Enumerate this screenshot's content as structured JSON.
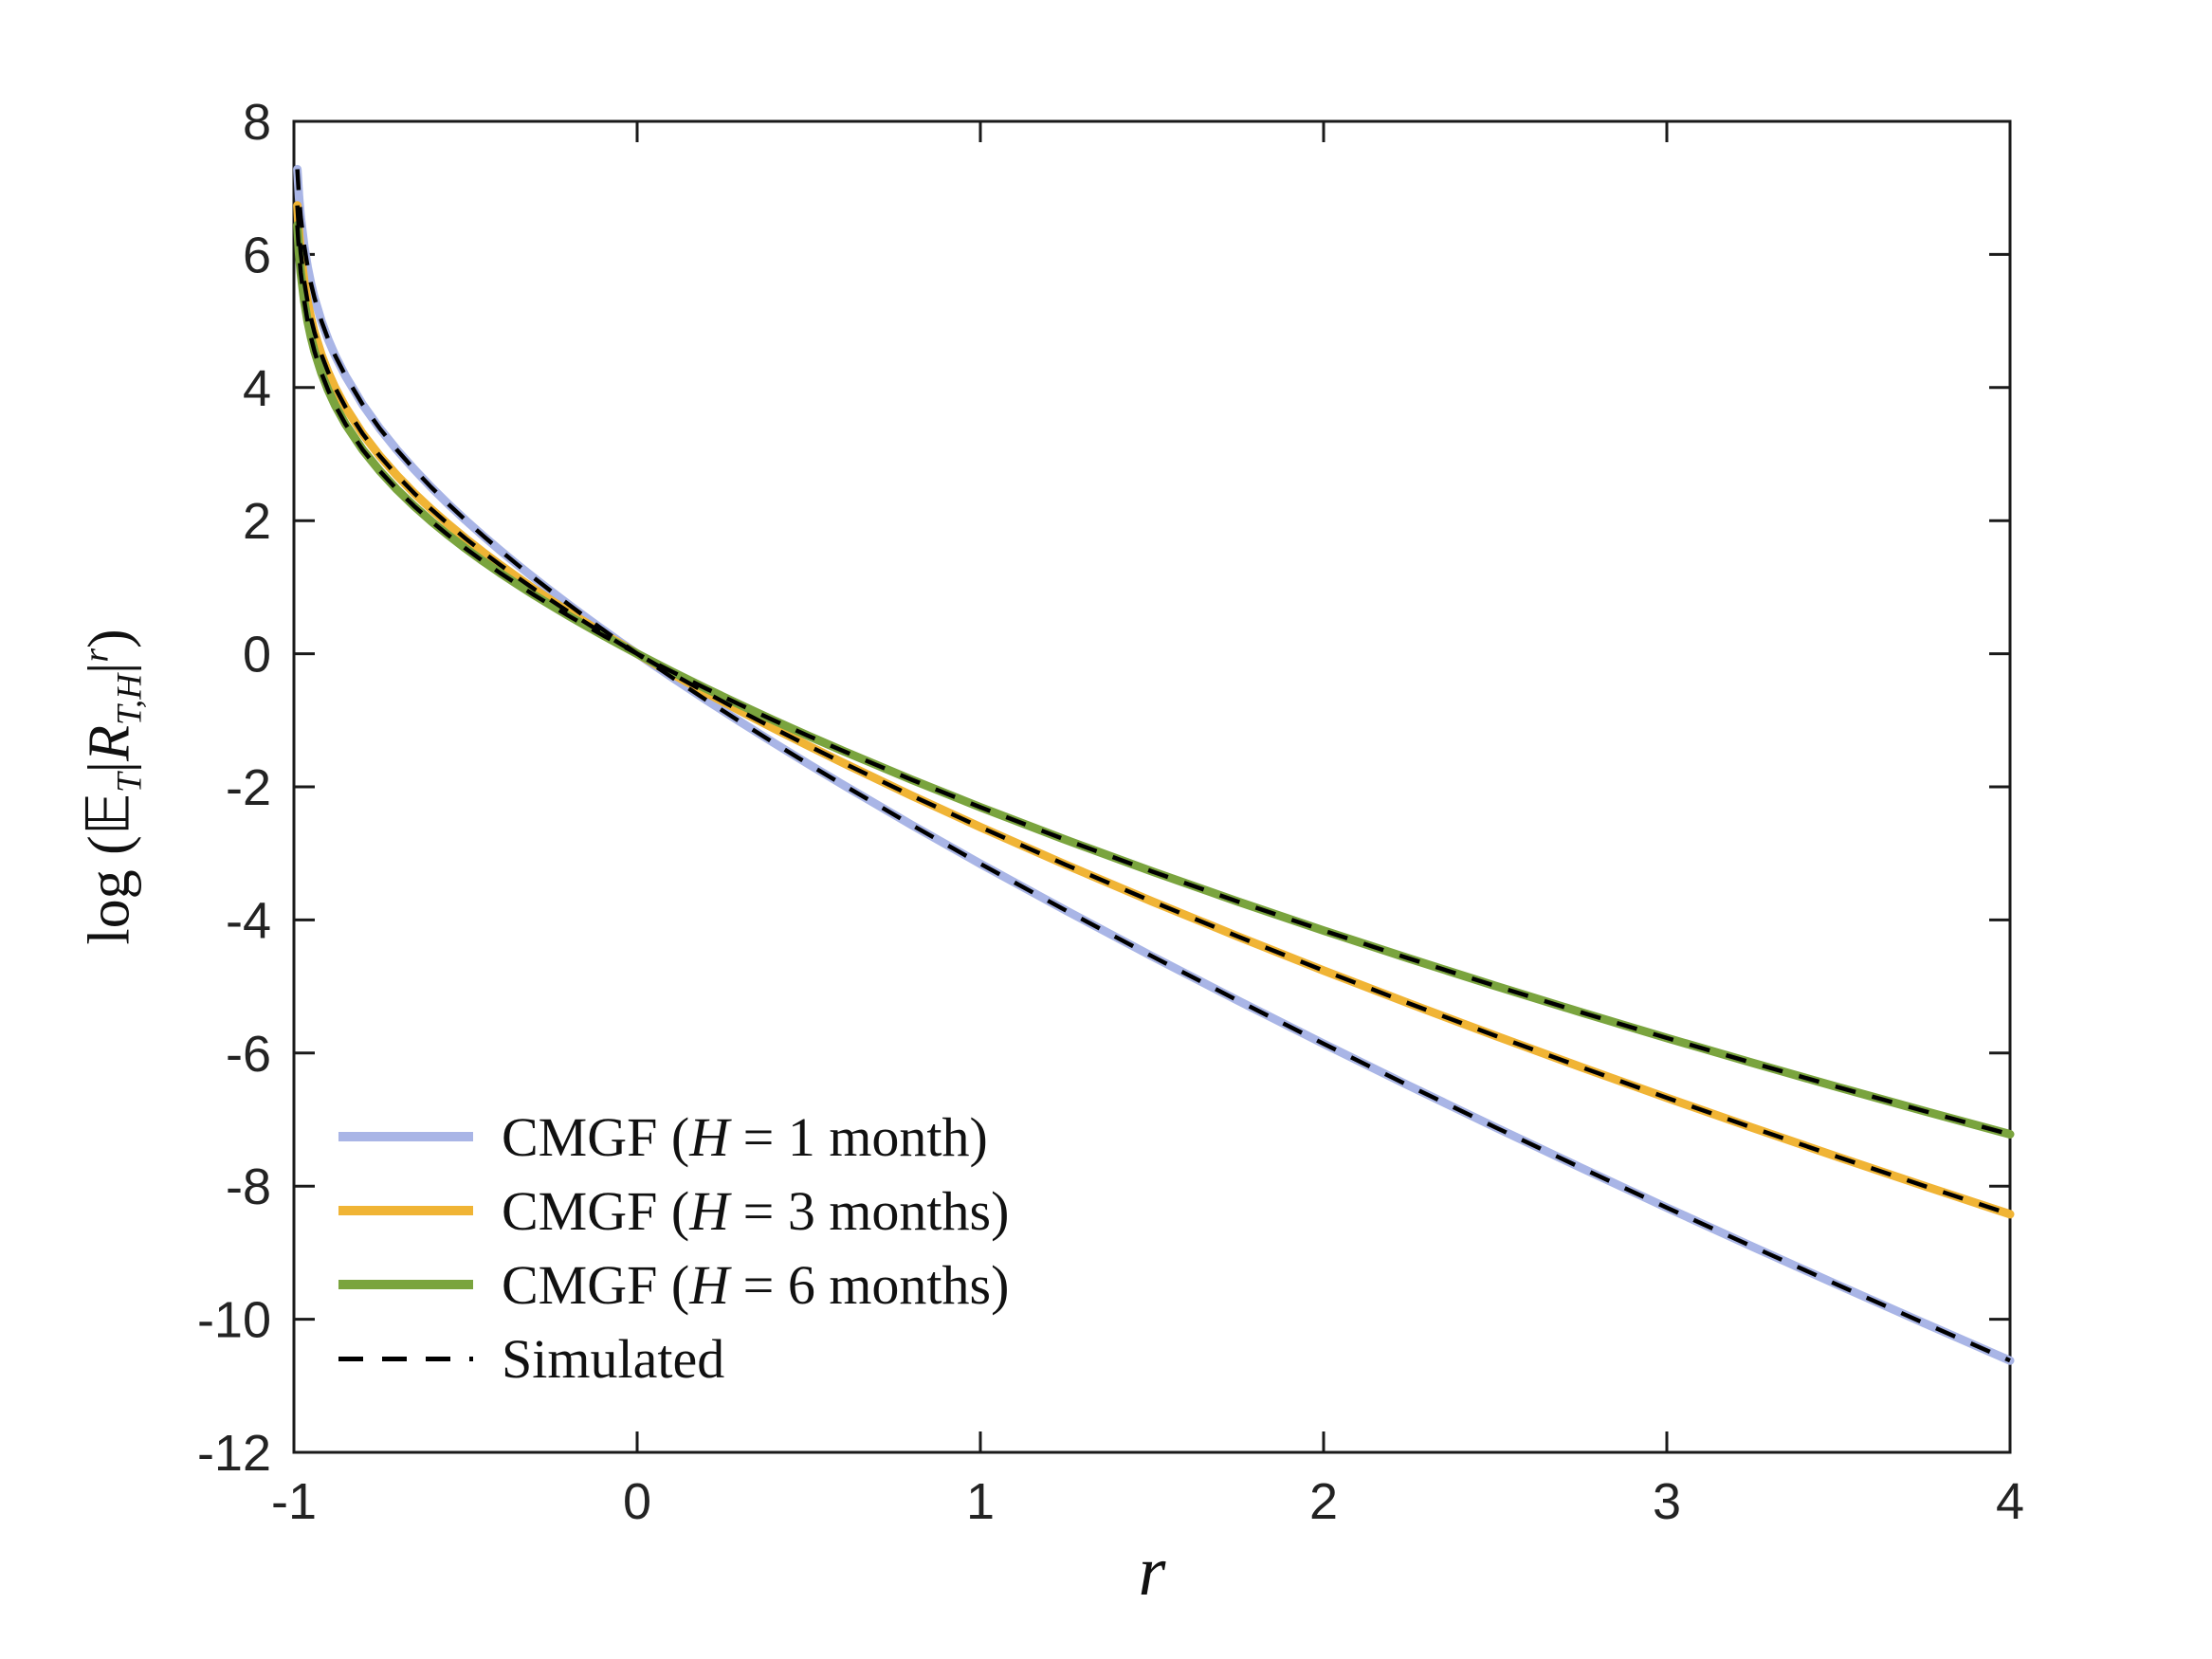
{
  "figure": {
    "title": "",
    "colors": {
      "background": "#ffffff",
      "axis": "#1a1a1a",
      "tick_label": "#232323"
    }
  },
  "ylabel": {
    "log": "log ",
    "open": "(",
    "E": "𝔼",
    "Esub": "T",
    "bar1": "|",
    "R": "R",
    "Rsub": "T,H",
    "bar2": "|",
    "sup": "r",
    "close": ")"
  },
  "xlabel": {
    "text": "r"
  },
  "legend": {
    "position": "lower-left-inside",
    "boxed": false,
    "items": [
      {
        "prefix": "CMGF (",
        "var": "H",
        "suffix": " = 1 month)",
        "color": "#a9b5e6",
        "style": "solid"
      },
      {
        "prefix": "CMGF (",
        "var": "H",
        "suffix": " = 3 months)",
        "color": "#f0b435",
        "style": "solid"
      },
      {
        "prefix": "CMGF (",
        "var": "H",
        "suffix": " = 6 months)",
        "color": "#7aa43e",
        "style": "solid"
      },
      {
        "prefix": "Simulated",
        "var": "",
        "suffix": "",
        "color": "#000000",
        "style": "dashed"
      }
    ]
  },
  "chart_data": {
    "type": "line",
    "title": "",
    "xlabel": "r",
    "ylabel": "log(E_T |R_{T,H}|^r)",
    "xlim": [
      -1,
      4
    ],
    "ylim": [
      -12,
      8
    ],
    "xticks": [
      -1,
      0,
      1,
      2,
      3,
      4
    ],
    "yticks": [
      -12,
      -10,
      -8,
      -6,
      -4,
      -2,
      0,
      2,
      4,
      6,
      8
    ],
    "grid": false,
    "legend_position": "lower-left-inside",
    "x": [
      -0.99,
      -0.985,
      -0.98,
      -0.97,
      -0.96,
      -0.95,
      -0.94,
      -0.92,
      -0.9,
      -0.88,
      -0.85,
      -0.8,
      -0.75,
      -0.7,
      -0.65,
      -0.6,
      -0.55,
      -0.5,
      -0.45,
      -0.4,
      -0.35,
      -0.3,
      -0.25,
      -0.2,
      -0.15,
      -0.1,
      -0.05,
      0,
      0.1,
      0.2,
      0.3,
      0.4,
      0.5,
      0.6,
      0.8,
      1,
      1.25,
      1.5,
      1.75,
      2,
      2.25,
      2.5,
      2.75,
      3,
      3.25,
      3.5,
      3.75,
      4
    ],
    "series": [
      {
        "name": "CMGF (H = 1 month)",
        "color": "#a9b5e6",
        "style": "solid",
        "line_width": 9,
        "values": [
          7.281,
          6.861,
          6.559,
          6.124,
          5.808,
          5.557,
          5.345,
          5.0,
          4.722,
          4.483,
          4.176,
          3.747,
          3.385,
          3.064,
          2.773,
          2.502,
          2.248,
          2.007,
          1.778,
          1.557,
          1.344,
          1.137,
          0.937,
          0.741,
          0.55,
          0.363,
          0.18,
          0,
          -0.351,
          -0.691,
          -1.022,
          -1.345,
          -1.661,
          -1.97,
          -2.573,
          -3.156,
          -3.861,
          -4.546,
          -5.211,
          -5.86,
          -6.494,
          -7.115,
          -7.724,
          -8.323,
          -8.91,
          -9.489,
          -10.059,
          -10.621
        ]
      },
      {
        "name": "CMGF (H = 3 months)",
        "color": "#f0b435",
        "style": "solid",
        "line_width": 9,
        "values": [
          6.736,
          6.319,
          6.02,
          5.591,
          5.28,
          5.034,
          4.828,
          4.494,
          4.227,
          3.999,
          3.708,
          3.307,
          2.973,
          2.679,
          2.415,
          2.172,
          1.946,
          1.732,
          1.53,
          1.337,
          1.152,
          0.972,
          0.8,
          0.631,
          0.468,
          0.308,
          0.153,
          0,
          -0.296,
          -0.581,
          -0.857,
          -1.125,
          -1.386,
          -1.64,
          -2.133,
          -2.606,
          -3.174,
          -3.721,
          -4.248,
          -4.76,
          -5.256,
          -5.74,
          -6.211,
          -6.673,
          -7.123,
          -7.564,
          -7.997,
          -8.421
        ]
      },
      {
        "name": "CMGF (H = 6 months)",
        "color": "#7aa43e",
        "style": "solid",
        "line_width": 9,
        "values": [
          6.439,
          6.024,
          5.726,
          5.3,
          4.992,
          4.749,
          4.546,
          4.218,
          3.957,
          3.735,
          3.453,
          3.067,
          2.748,
          2.469,
          2.22,
          1.992,
          1.781,
          1.582,
          1.395,
          1.217,
          1.047,
          0.882,
          0.725,
          0.571,
          0.423,
          0.278,
          0.138,
          0,
          -0.266,
          -0.521,
          -0.767,
          -1.005,
          -1.236,
          -1.46,
          -1.893,
          -2.306,
          -2.799,
          -3.271,
          -3.723,
          -4.16,
          -4.581,
          -4.99,
          -5.387,
          -5.773,
          -6.148,
          -6.514,
          -6.872,
          -7.221
        ]
      }
    ],
    "simulated_overlay": {
      "name": "Simulated",
      "color": "#000000",
      "style": "dashed",
      "line_width": 4.5,
      "dash": [
        22,
        18
      ],
      "overlays_series": [
        0,
        1,
        2
      ]
    }
  }
}
